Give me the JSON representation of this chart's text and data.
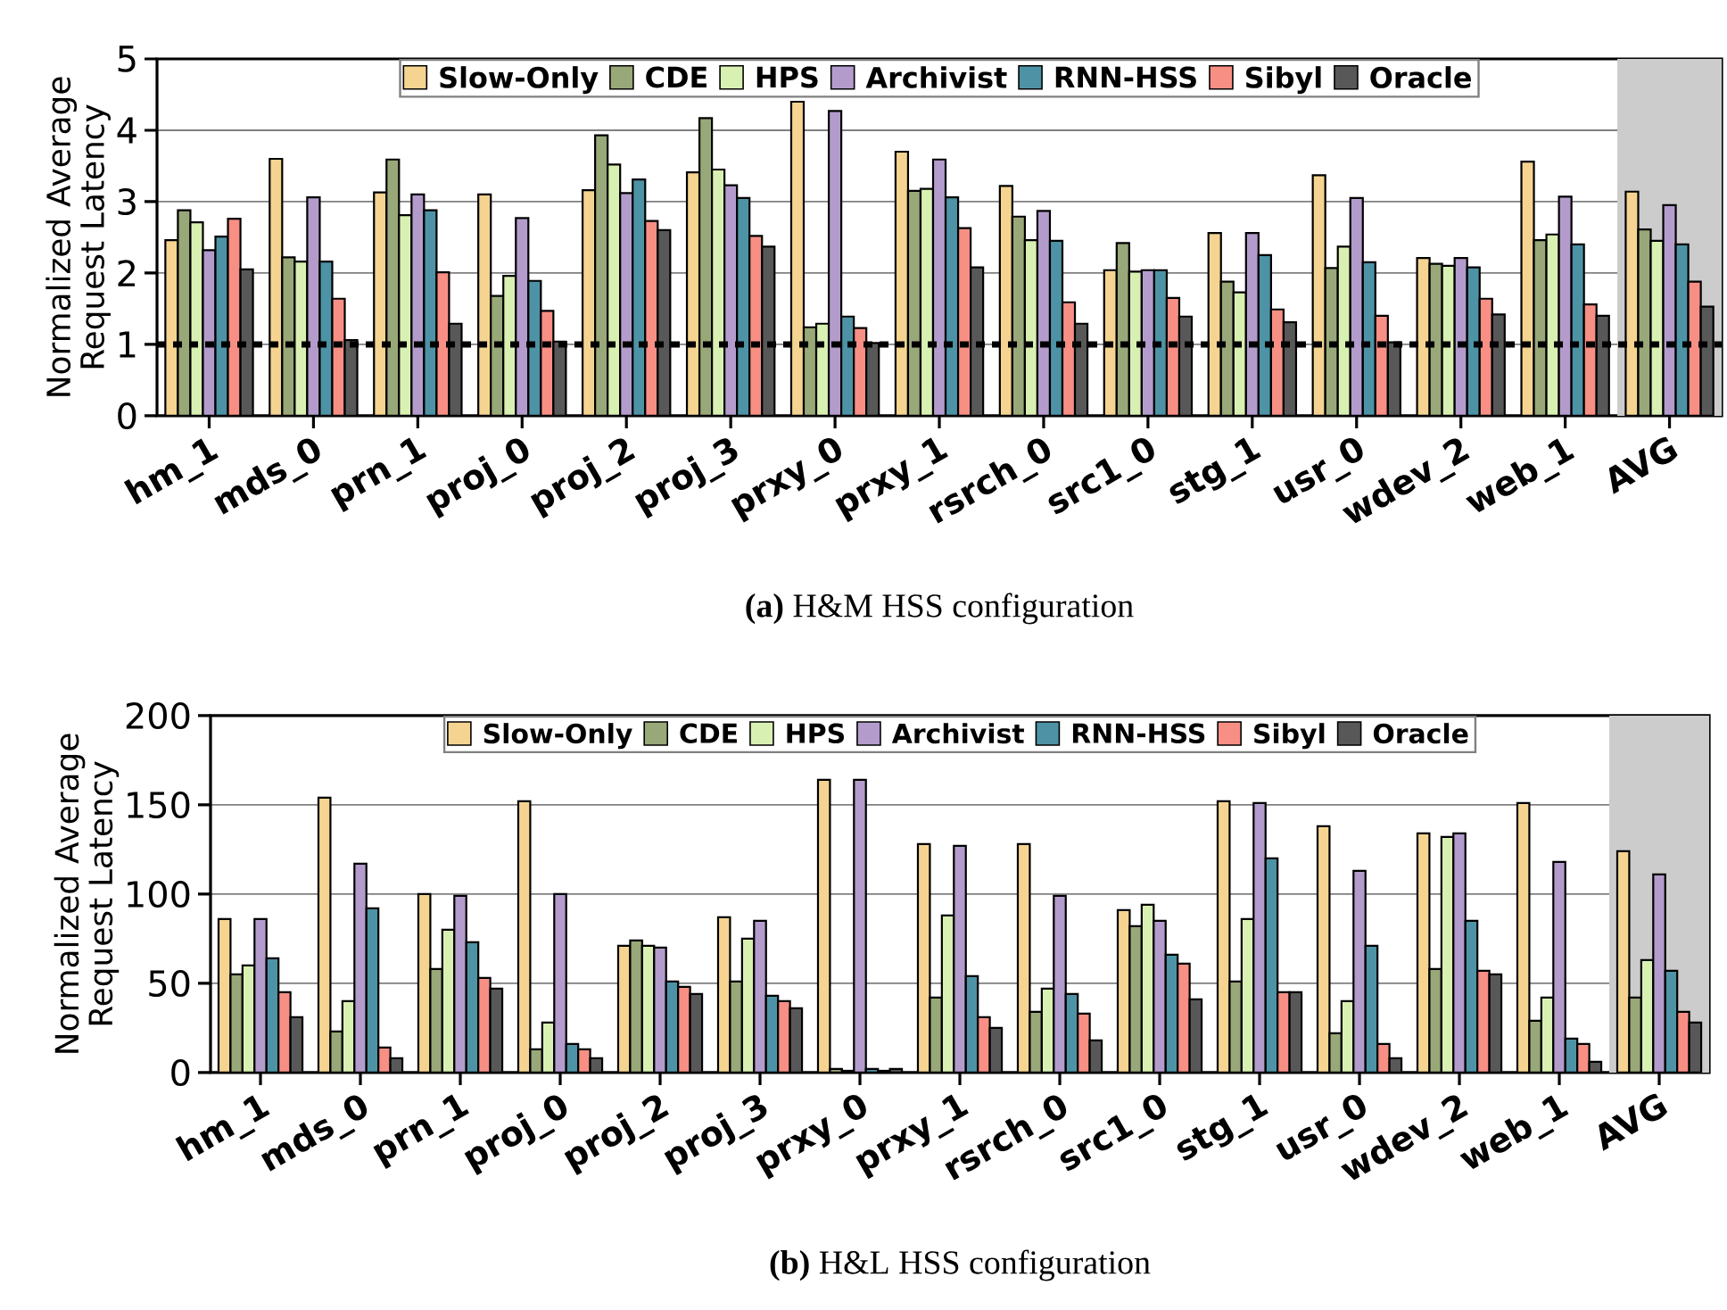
{
  "chart_data": [
    {
      "type": "bar",
      "title": "**(a)** H&M HSS configuration",
      "ylabel": "Normalized Average Request Latency",
      "categories": [
        "hm_1",
        "mds_0",
        "prn_1",
        "proj_0",
        "proj_2",
        "proj_3",
        "prxy_0",
        "prxy_1",
        "rsrch_0",
        "src1_0",
        "stg_1",
        "usr_0",
        "wdev_2",
        "web_1",
        "AVG"
      ],
      "series": [
        {
          "name": "Slow-Only",
          "color": "#f5d491",
          "values": [
            2.46,
            3.6,
            3.13,
            3.1,
            3.16,
            3.41,
            4.4,
            3.7,
            3.22,
            2.04,
            2.56,
            3.37,
            2.21,
            3.56,
            3.14
          ]
        },
        {
          "name": "CDE",
          "color": "#98a878",
          "values": [
            2.88,
            2.22,
            3.59,
            1.68,
            3.93,
            4.17,
            1.24,
            3.15,
            2.79,
            2.42,
            1.88,
            2.07,
            2.13,
            2.46,
            2.61
          ]
        },
        {
          "name": "HPS",
          "color": "#d9f0b3",
          "values": [
            2.71,
            2.16,
            2.81,
            1.96,
            3.52,
            3.45,
            1.29,
            3.18,
            2.46,
            2.02,
            1.73,
            2.37,
            2.1,
            2.54,
            2.45
          ]
        },
        {
          "name": "Archivist",
          "color": "#b39ccc",
          "values": [
            2.32,
            3.06,
            3.1,
            2.77,
            3.12,
            3.23,
            4.27,
            3.59,
            2.87,
            2.04,
            2.56,
            3.05,
            2.21,
            3.07,
            2.95
          ]
        },
        {
          "name": "RNN-HSS",
          "color": "#4d93a5",
          "values": [
            2.51,
            2.16,
            2.88,
            1.89,
            3.31,
            3.05,
            1.39,
            3.06,
            2.45,
            2.04,
            2.25,
            2.15,
            2.08,
            2.4,
            2.4
          ]
        },
        {
          "name": "Sibyl",
          "color": "#f78f85",
          "values": [
            2.76,
            1.64,
            2.01,
            1.47,
            2.73,
            2.52,
            1.23,
            2.63,
            1.59,
            1.65,
            1.49,
            1.4,
            1.64,
            1.56,
            1.88
          ]
        },
        {
          "name": "Oracle",
          "color": "#585858",
          "values": [
            2.05,
            1.06,
            1.29,
            1.04,
            2.6,
            2.37,
            1.02,
            2.08,
            1.29,
            1.39,
            1.31,
            1.03,
            1.42,
            1.4,
            1.53
          ]
        }
      ],
      "ylim": [
        0,
        5
      ],
      "yticks": [
        0,
        1,
        2,
        3,
        4,
        5
      ],
      "grid": "y",
      "legend": "top",
      "ref_lines": [
        {
          "axis": "y",
          "value": 1,
          "color": "#000000",
          "line_style": "dashed"
        }
      ],
      "bands": [
        {
          "axis": "x",
          "from": "AVG",
          "to": "AVG",
          "color": "#cccccc"
        }
      ]
    },
    {
      "type": "bar",
      "title": "**(b)** H&L HSS configuration",
      "ylabel": "Normalized Average Request Latency",
      "categories": [
        "hm_1",
        "mds_0",
        "prn_1",
        "proj_0",
        "proj_2",
        "proj_3",
        "prxy_0",
        "prxy_1",
        "rsrch_0",
        "src1_0",
        "stg_1",
        "usr_0",
        "wdev_2",
        "web_1",
        "AVG"
      ],
      "series": [
        {
          "name": "Slow-Only",
          "color": "#f5d491",
          "values": [
            86,
            154,
            100,
            152,
            71,
            87,
            164,
            128,
            128,
            91,
            152,
            138,
            134,
            151,
            124
          ]
        },
        {
          "name": "CDE",
          "color": "#98a878",
          "values": [
            55,
            23,
            58,
            13,
            74,
            51,
            2,
            42,
            34,
            82,
            51,
            22,
            58,
            29,
            42
          ]
        },
        {
          "name": "HPS",
          "color": "#d9f0b3",
          "values": [
            60,
            40,
            80,
            28,
            71,
            75,
            1,
            88,
            47,
            94,
            86,
            40,
            132,
            42,
            63
          ]
        },
        {
          "name": "Archivist",
          "color": "#b39ccc",
          "values": [
            86,
            117,
            99,
            100,
            70,
            85,
            164,
            127,
            99,
            85,
            151,
            113,
            134,
            118,
            111
          ]
        },
        {
          "name": "RNN-HSS",
          "color": "#4d93a5",
          "values": [
            64,
            92,
            73,
            16,
            51,
            43,
            2,
            54,
            44,
            66,
            120,
            71,
            85,
            19,
            57
          ]
        },
        {
          "name": "Sibyl",
          "color": "#f78f85",
          "values": [
            45,
            14,
            53,
            13,
            48,
            40,
            1,
            31,
            33,
            61,
            45,
            16,
            57,
            16,
            34
          ]
        },
        {
          "name": "Oracle",
          "color": "#585858",
          "values": [
            31,
            8,
            47,
            8,
            44,
            36,
            2,
            25,
            18,
            41,
            45,
            8,
            55,
            6,
            28
          ]
        }
      ],
      "ylim": [
        0,
        200
      ],
      "yticks": [
        0,
        50,
        100,
        150,
        200
      ],
      "grid": "y",
      "legend": "top",
      "bands": [
        {
          "axis": "x",
          "from": "AVG",
          "to": "AVG",
          "color": "#cccccc"
        }
      ]
    }
  ]
}
